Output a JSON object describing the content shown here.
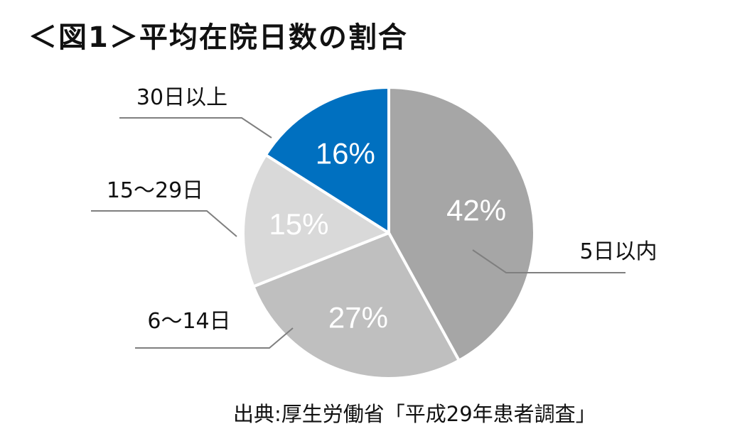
{
  "title": "＜図1＞平均在院日数の割合",
  "source": "出典:厚生労働省「平成29年患者調査」",
  "chart_data": {
    "type": "pie",
    "title": "＜図1＞平均在院日数の割合",
    "slices": [
      {
        "label": "5日以内",
        "value": 42,
        "value_label": "42%",
        "color": "#a6a6a6",
        "label_color": "#ffffff"
      },
      {
        "label": "6〜14日",
        "value": 27,
        "value_label": "27%",
        "color": "#bfbfbf",
        "label_color": "#ffffff"
      },
      {
        "label": "15〜29日",
        "value": 15,
        "value_label": "15%",
        "color": "#d9d9d9",
        "label_color": "#ffffff"
      },
      {
        "label": "30日以上",
        "value": 16,
        "value_label": "16%",
        "color": "#0070c0",
        "label_color": "#ffffff"
      }
    ],
    "start": "12 o'clock",
    "direction": "clockwise",
    "legend": "none"
  }
}
